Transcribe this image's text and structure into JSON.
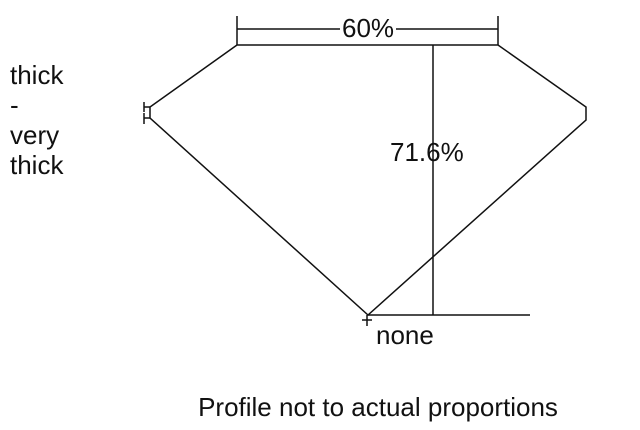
{
  "girdle": {
    "lines": [
      "thick",
      "-",
      "very",
      "thick"
    ]
  },
  "table_percent": "60%",
  "total_depth_percent": "71.6%",
  "culet": "none",
  "caption": "Profile not to actual proportions",
  "colors": {
    "line": "#111111",
    "background": "#ffffff"
  }
}
